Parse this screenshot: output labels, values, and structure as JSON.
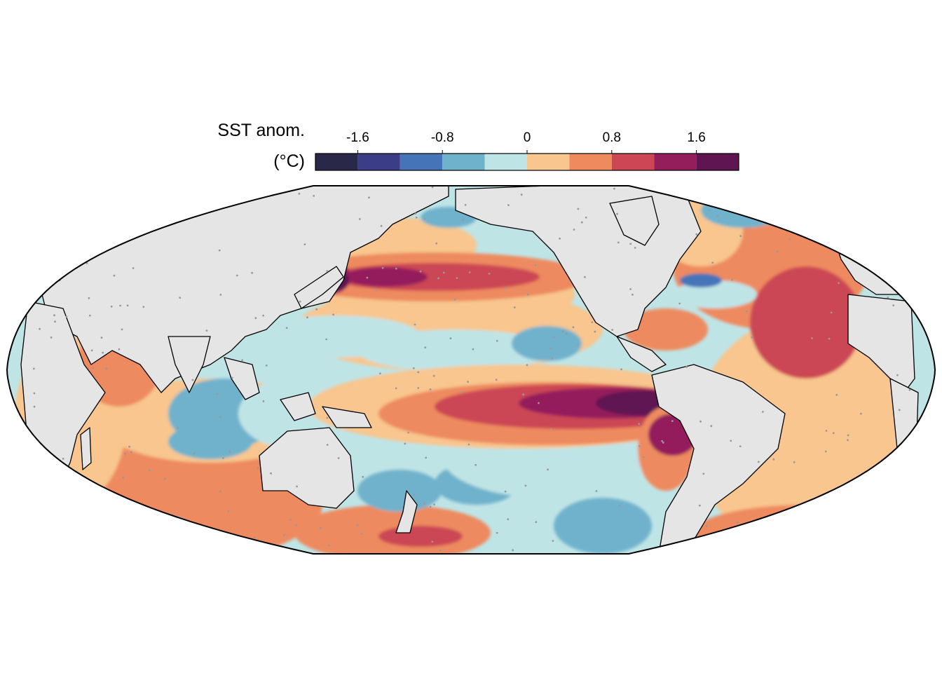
{
  "colors": {
    "land": "#e5e5e5",
    "ocean_fallback": "#bfe4e6",
    "coast": "#000000",
    "border": "#000000",
    "stipple": "#999999",
    "missing": "#ffffff"
  },
  "legend": {
    "title_line1": "SST anom.",
    "title_line2": "(°C)",
    "ticks": [
      {
        "value": -1.6,
        "label": "-1.6"
      },
      {
        "value": -0.8,
        "label": "-0.8"
      },
      {
        "value": 0,
        "label": "0"
      },
      {
        "value": 0.8,
        "label": "0.8"
      },
      {
        "value": 1.6,
        "label": "1.6"
      }
    ],
    "range": [
      -2.0,
      2.0
    ],
    "bins": [
      {
        "min": -2.0,
        "max": -1.6,
        "color": "#2a2848"
      },
      {
        "min": -1.6,
        "max": -1.2,
        "color": "#3b3d86"
      },
      {
        "min": -1.2,
        "max": -0.8,
        "color": "#4574b8"
      },
      {
        "min": -0.8,
        "max": -0.4,
        "color": "#6fb2cc"
      },
      {
        "min": -0.4,
        "max": 0.0,
        "color": "#bfe4e6"
      },
      {
        "min": 0.0,
        "max": 0.4,
        "color": "#f8c68e"
      },
      {
        "min": 0.4,
        "max": 0.8,
        "color": "#ee8a5e"
      },
      {
        "min": 0.8,
        "max": 1.2,
        "color": "#cc4655"
      },
      {
        "min": 1.2,
        "max": 1.6,
        "color": "#941e5c"
      },
      {
        "min": 1.6,
        "max": 2.0,
        "color": "#5e1552"
      }
    ]
  },
  "map": {
    "projection": "equal-earth",
    "central_longitude": 180,
    "lat_range": [
      -60,
      72
    ],
    "lon_range": [
      -180,
      180
    ]
  }
}
